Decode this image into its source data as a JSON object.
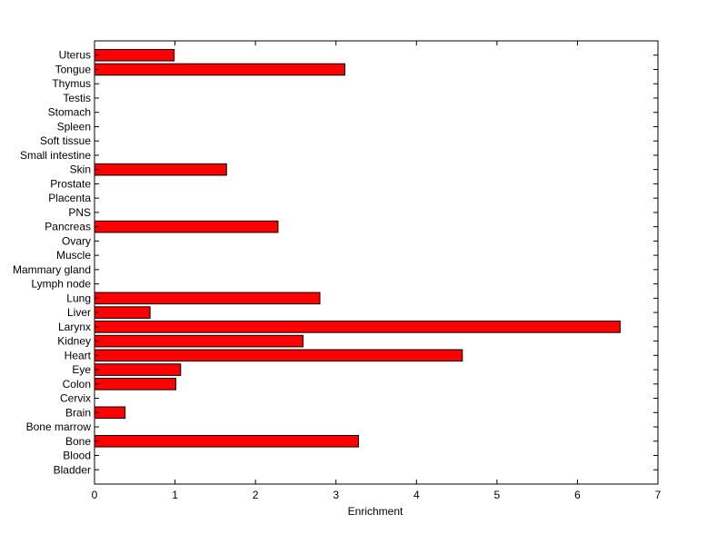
{
  "chart_data": {
    "type": "bar",
    "orientation": "horizontal",
    "title": "",
    "xlabel": "Enrichment",
    "ylabel": "",
    "xlim": [
      0,
      7
    ],
    "xticks": [
      0,
      1,
      2,
      3,
      4,
      5,
      6,
      7
    ],
    "grid": false,
    "bar_color": "#ff0000",
    "categories": [
      "Bladder",
      "Blood",
      "Bone",
      "Bone marrow",
      "Brain",
      "Cervix",
      "Colon",
      "Eye",
      "Heart",
      "Kidney",
      "Larynx",
      "Liver",
      "Lung",
      "Lymph node",
      "Mammary gland",
      "Muscle",
      "Ovary",
      "Pancreas",
      "PNS",
      "Placenta",
      "Prostate",
      "Skin",
      "Small intestine",
      "Soft tissue",
      "Spleen",
      "Stomach",
      "Testis",
      "Thymus",
      "Tongue",
      "Uterus"
    ],
    "values": [
      0,
      0,
      3.28,
      0,
      0.38,
      0,
      1.01,
      1.07,
      4.57,
      2.59,
      6.53,
      0.69,
      2.8,
      0,
      0,
      0,
      0,
      2.28,
      0,
      0,
      0,
      1.64,
      0,
      0,
      0,
      0,
      0,
      0,
      3.11,
      0.99
    ]
  }
}
